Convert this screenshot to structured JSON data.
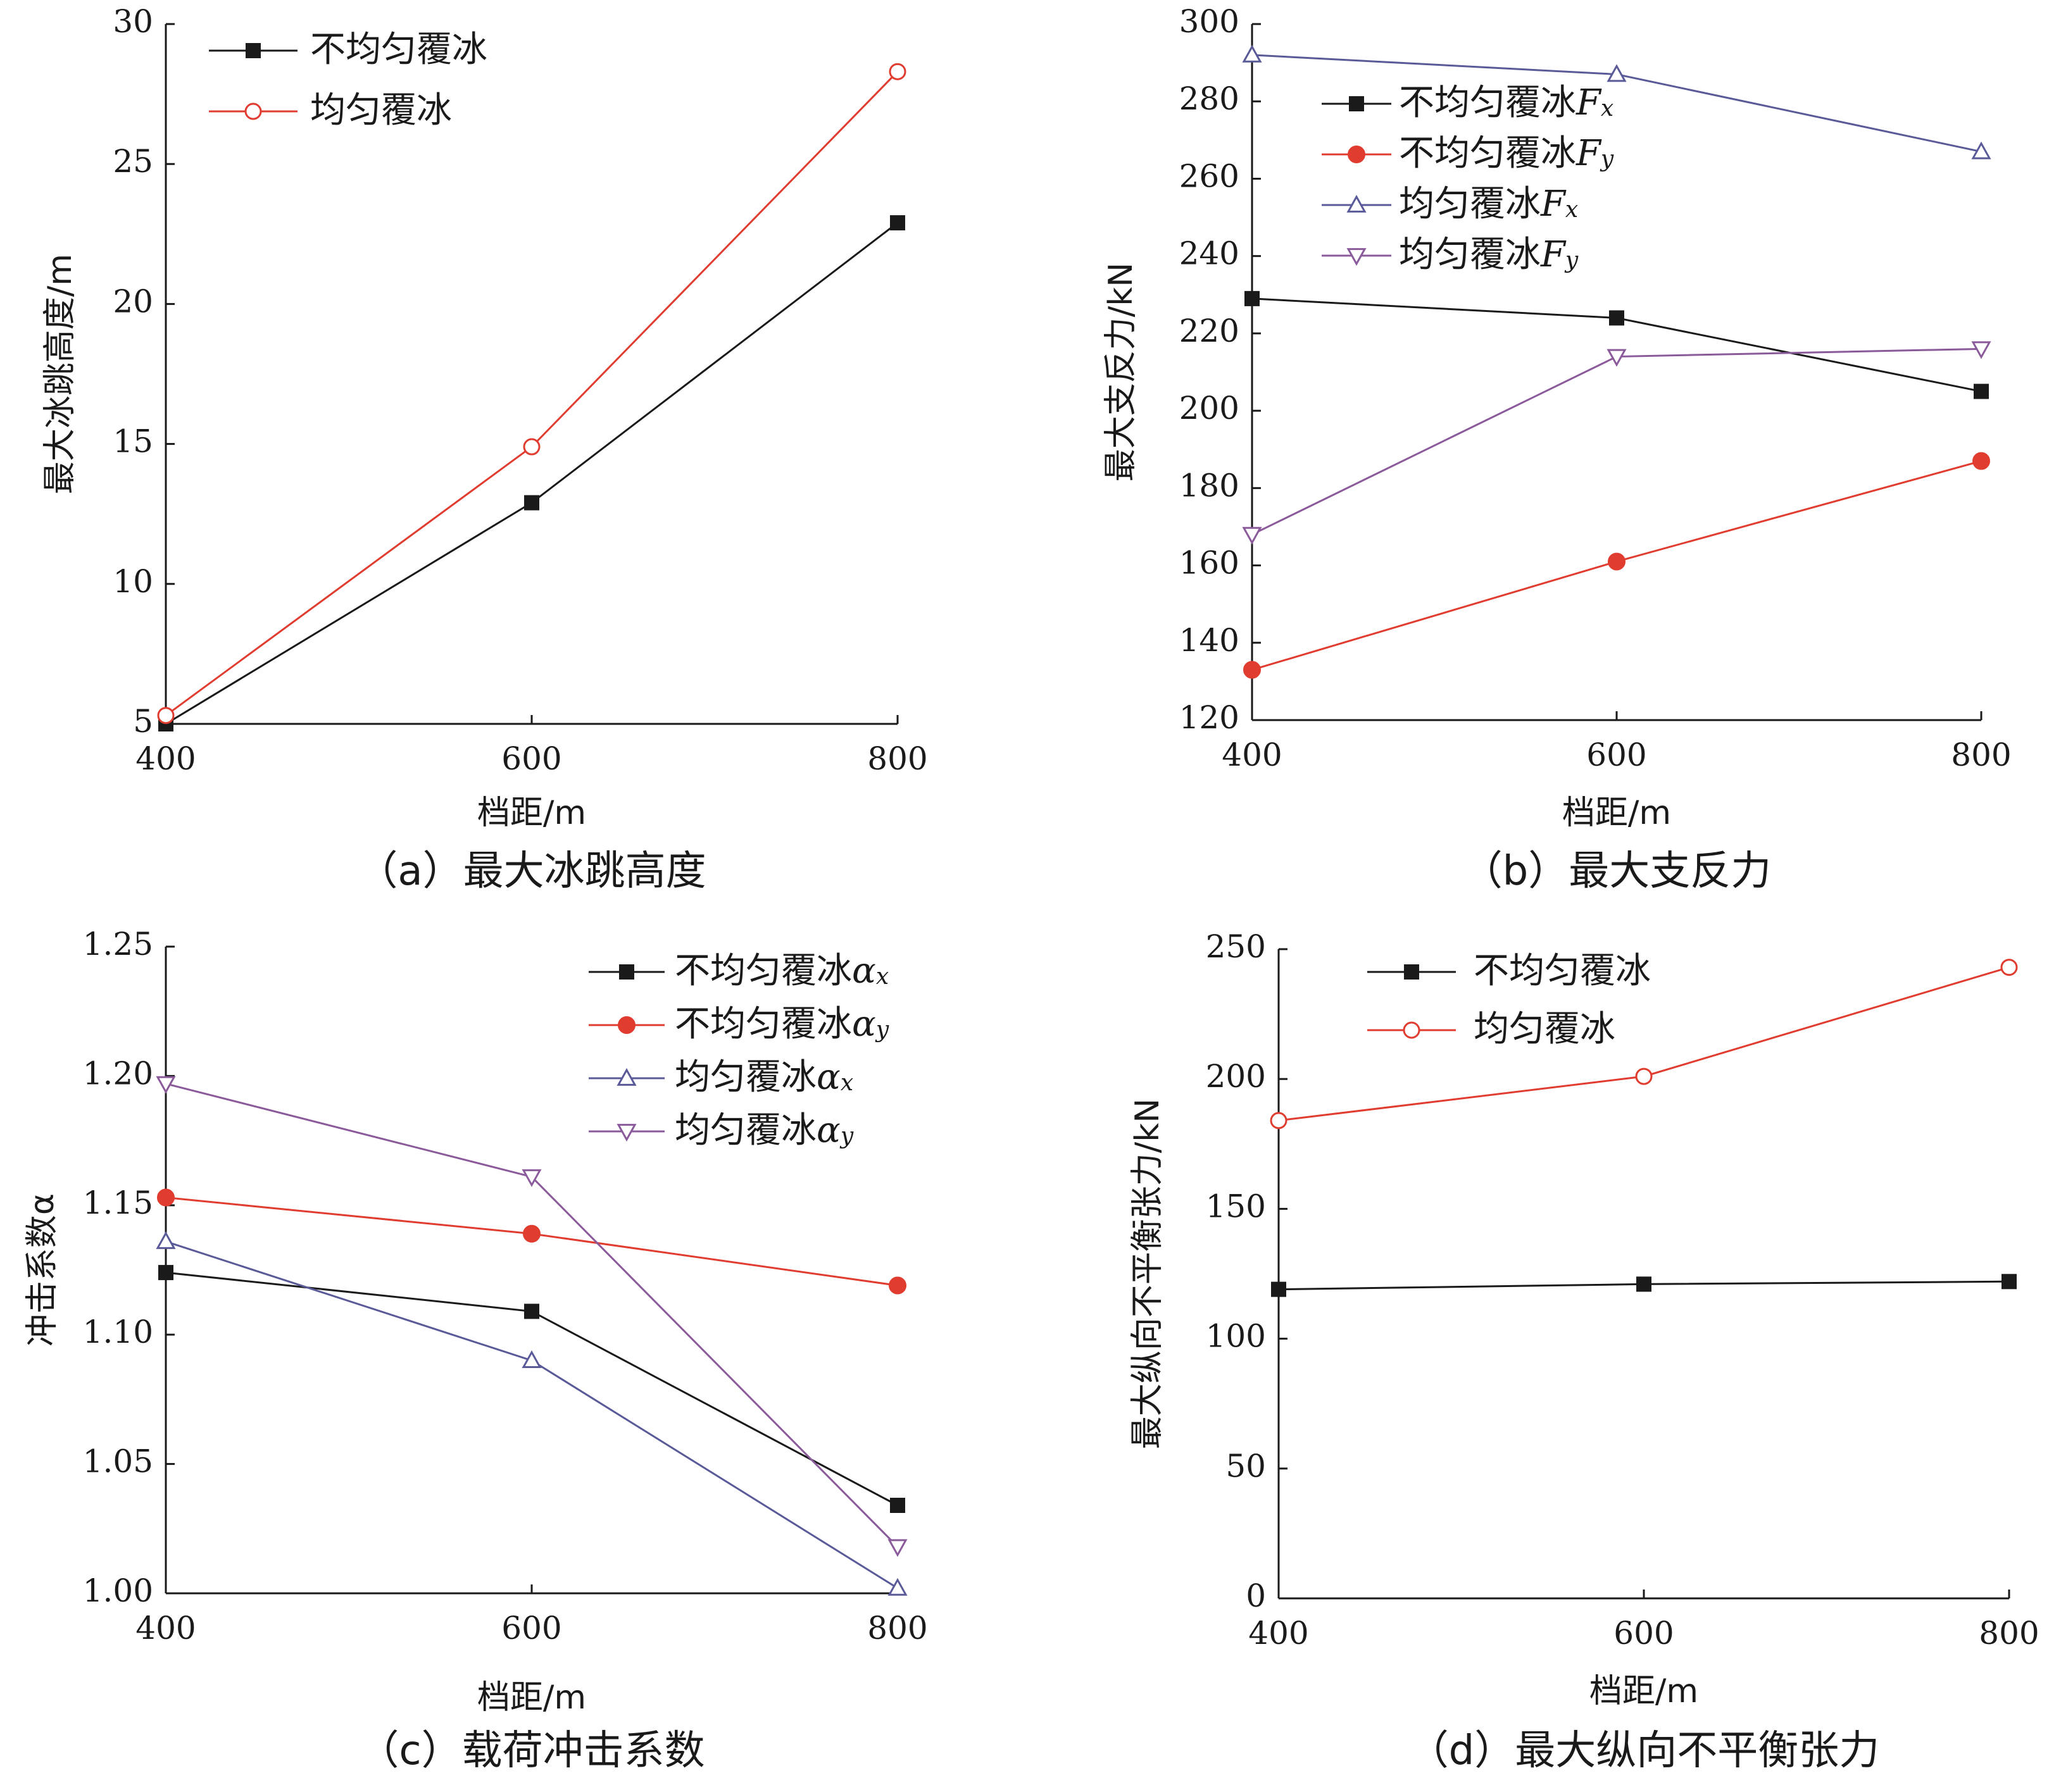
{
  "chart_data": [
    {
      "id": "a",
      "type": "line",
      "caption": "（a）最大冰跳高度",
      "xlabel": "档距/m",
      "ylabel": "最大冰跳高度/m",
      "x": [
        400,
        600,
        800
      ],
      "xticks": [
        400,
        600,
        800
      ],
      "yticks": [
        5,
        10,
        15,
        20,
        25,
        30
      ],
      "yticklabels": [
        "5",
        "10",
        "15",
        "20",
        "25",
        "30"
      ],
      "ylim": [
        5,
        30
      ],
      "legend_position": "top-left",
      "series": [
        {
          "name": "不均匀覆冰",
          "sub": "",
          "color": "#1a1a1a",
          "marker": "square",
          "values": [
            5.0,
            12.9,
            22.9
          ]
        },
        {
          "name": "均匀覆冰",
          "sub": "",
          "color": "#e03c2f",
          "marker": "circle-open",
          "values": [
            5.3,
            14.9,
            28.3
          ]
        }
      ]
    },
    {
      "id": "b",
      "type": "line",
      "caption": "（b）最大支反力",
      "xlabel": "档距/m",
      "ylabel": "最大支反力/kN",
      "x": [
        400,
        600,
        800
      ],
      "xticks": [
        400,
        600,
        800
      ],
      "yticks": [
        120,
        140,
        160,
        180,
        200,
        220,
        240,
        260,
        280,
        300
      ],
      "yticklabels": [
        "120",
        "140",
        "160",
        "180",
        "200",
        "220",
        "240",
        "260",
        "280",
        "300"
      ],
      "ylim": [
        120,
        300
      ],
      "legend_position": "top-center",
      "series": [
        {
          "name": "不均匀覆冰",
          "sym": "F",
          "sub": "x",
          "color": "#1a1a1a",
          "marker": "square",
          "values": [
            229,
            224,
            205
          ]
        },
        {
          "name": "不均匀覆冰",
          "sym": "F",
          "sub": "y",
          "color": "#e03c2f",
          "marker": "circle-filled",
          "values": [
            133,
            161,
            187
          ]
        },
        {
          "name": "均匀覆冰",
          "sym": "F",
          "sub": "x",
          "color": "#5a5a99",
          "marker": "triangle-up",
          "values": [
            292,
            287,
            267
          ]
        },
        {
          "name": "均匀覆冰",
          "sym": "F",
          "sub": "y",
          "color": "#8a5a9a",
          "marker": "triangle-down",
          "values": [
            168,
            214,
            216
          ]
        }
      ]
    },
    {
      "id": "c",
      "type": "line",
      "caption": "（c）载荷冲击系数",
      "xlabel": "档距/m",
      "ylabel": "冲击系数α",
      "x": [
        400,
        600,
        800
      ],
      "xticks": [
        400,
        600,
        800
      ],
      "yticks": [
        1.0,
        1.05,
        1.1,
        1.15,
        1.2,
        1.25
      ],
      "yticklabels": [
        "1.00",
        "1.05",
        "1.10",
        "1.15",
        "1.20",
        "1.25"
      ],
      "ylim": [
        1.0,
        1.25
      ],
      "legend_position": "top-right",
      "series": [
        {
          "name": "不均匀覆冰",
          "sym": "α",
          "sub": "x",
          "color": "#1a1a1a",
          "marker": "square",
          "values": [
            1.124,
            1.109,
            1.034
          ]
        },
        {
          "name": "不均匀覆冰",
          "sym": "α",
          "sub": "y",
          "color": "#e03c2f",
          "marker": "circle-filled",
          "values": [
            1.153,
            1.139,
            1.119
          ]
        },
        {
          "name": "均匀覆冰",
          "sym": "α",
          "sub": "x",
          "color": "#5a5a99",
          "marker": "triangle-up",
          "values": [
            1.136,
            1.09,
            1.002
          ]
        },
        {
          "name": "均匀覆冰",
          "sym": "α",
          "sub": "y",
          "color": "#8a5a9a",
          "marker": "triangle-down",
          "values": [
            1.197,
            1.161,
            1.018
          ]
        }
      ]
    },
    {
      "id": "d",
      "type": "line",
      "caption": "（d）最大纵向不平衡张力",
      "xlabel": "档距/m",
      "ylabel": "最大纵向不平衡张力/kN",
      "x": [
        400,
        600,
        800
      ],
      "xticks": [
        400,
        600,
        800
      ],
      "yticks": [
        0,
        50,
        100,
        150,
        200,
        250
      ],
      "yticklabels": [
        "0",
        "50",
        "100",
        "150",
        "200",
        "250"
      ],
      "ylim": [
        0,
        250
      ],
      "legend_position": "top-left",
      "series": [
        {
          "name": "不均匀覆冰",
          "sub": "",
          "color": "#1a1a1a",
          "marker": "square",
          "values": [
            119,
            121,
            122
          ]
        },
        {
          "name": "均匀覆冰",
          "sub": "",
          "color": "#e03c2f",
          "marker": "circle-open",
          "values": [
            184,
            201,
            243
          ]
        }
      ]
    }
  ]
}
